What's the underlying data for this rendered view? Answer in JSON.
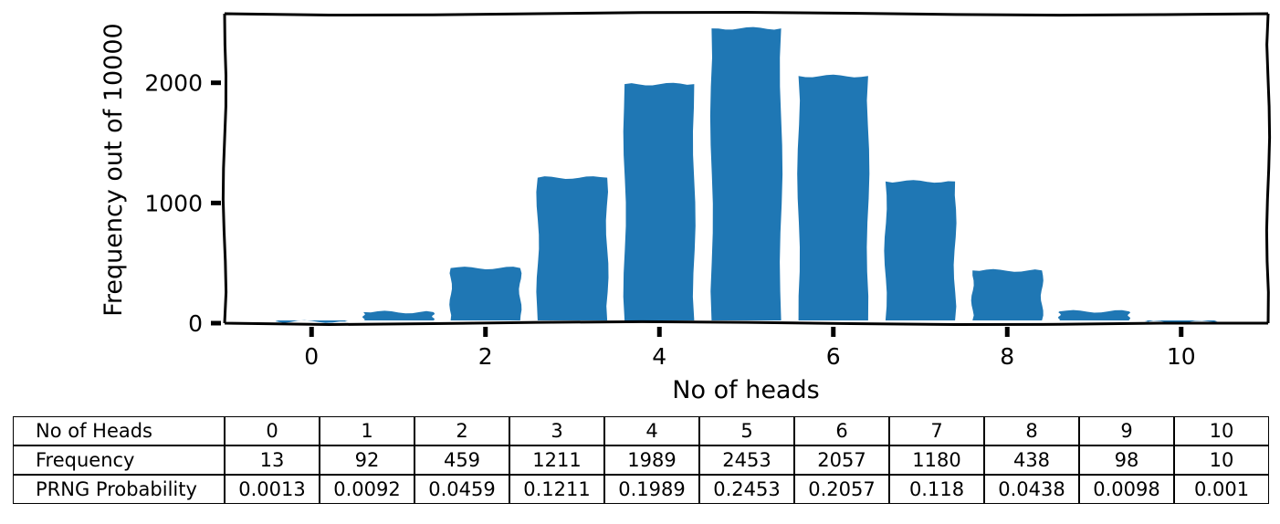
{
  "chart_data": {
    "type": "bar",
    "x": [
      0,
      1,
      2,
      3,
      4,
      5,
      6,
      7,
      8,
      9,
      10
    ],
    "values": [
      13,
      92,
      459,
      1211,
      1989,
      2453,
      2057,
      1180,
      438,
      98,
      10
    ],
    "color": "#1f77b4",
    "style": "xkcd",
    "xlabel": "No of heads",
    "ylabel": "Frequency out of 10000",
    "xticks": [
      "0",
      "2",
      "4",
      "6",
      "8",
      "10"
    ],
    "yticks": [
      "0",
      "1000",
      "2000"
    ],
    "xlim": [
      -1,
      11
    ],
    "ylim": [
      0,
      2575
    ],
    "grid": false
  },
  "table": {
    "row_labels": [
      "No of Heads",
      "Frequency",
      "PRNG Probability"
    ],
    "rows": [
      [
        "0",
        "1",
        "2",
        "3",
        "4",
        "5",
        "6",
        "7",
        "8",
        "9",
        "10"
      ],
      [
        "13",
        "92",
        "459",
        "1211",
        "1989",
        "2453",
        "2057",
        "1180",
        "438",
        "98",
        "10"
      ],
      [
        "0.0013",
        "0.0092",
        "0.0459",
        "0.1211",
        "0.1989",
        "0.2453",
        "0.2057",
        "0.118",
        "0.0438",
        "0.0098",
        "0.001"
      ]
    ]
  }
}
